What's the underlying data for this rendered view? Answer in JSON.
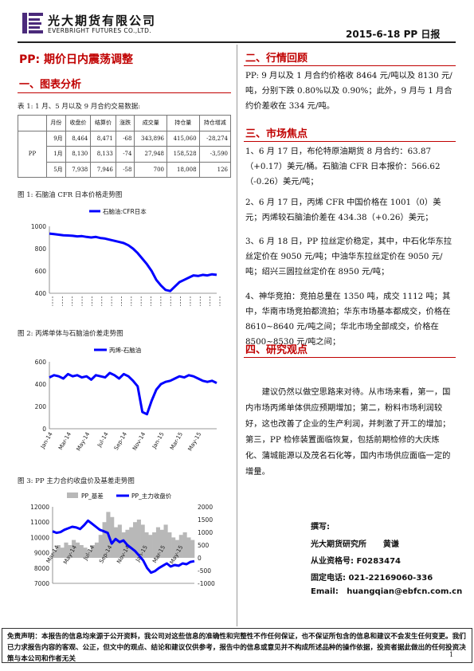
{
  "header": {
    "company_cn": "光大期货有限公司",
    "company_en": "EVERBRIGHT FUTURES CO.,LTD.",
    "report_date_label": "2015-6-18   PP 日报"
  },
  "title": "PP:  期价日内震荡调整",
  "left": {
    "section1_title": "一、图表分析",
    "table_caption": "表 1:  1 月、5 月以及 9 月合约交易数据:",
    "table": {
      "headers": [
        "月份",
        "收盘价",
        "结算价",
        "涨跌",
        "成交量",
        "持仓量",
        "持仓增减"
      ],
      "group_label": "PP",
      "rows": [
        [
          "9月",
          "8,464",
          "8,471",
          "-68",
          "343,896",
          "415,060",
          "-28,274"
        ],
        [
          "1月",
          "8,130",
          "8,133",
          "-74",
          "27,948",
          "158,528",
          "-3,590"
        ],
        [
          "5月",
          "7,938",
          "7,946",
          "-58",
          "700",
          "18,008",
          "126"
        ]
      ]
    },
    "fig1_caption": "图 1:  石脑油 CFR 日本价格走势图",
    "fig2_caption": "图 2:  丙烯单体与石脑油价差走势图",
    "fig3_caption": "图 3:  PP 主力合约收盘价及基差走势图"
  },
  "right": {
    "section2_title": "二、行情回顾",
    "section2_text": "PP: 9 月以及 1 月合约价格收 8464 元/吨以及 8130 元/吨，分别下跌 0.80%以及 0.90%；此外，9 月与 1 月合约价差收在 334 元/吨。",
    "section3_title": "三、市场焦点",
    "focus": [
      "1、6 月 17 日，布伦特原油期货 8 月合约：63.87（+0.17）美元/桶。石脑油 CFR 日本报价：566.62（-0.26）美元/吨；",
      "2、6 月 17 日，丙烯 CFR 中国价格在 1001（0）美元；丙烯较石脑油价差在 434.38（+0.26）美元；",
      "3、6 月 18 日，PP 拉丝定价稳定，其中，中石化华东拉丝定价在 9050 元/吨；中油华东拉丝定价在 9050 元/吨；绍兴三圆拉丝定价在 8950 元/吨；",
      "4、神华竞拍：竞拍总量在 1350 吨，成交 1112 吨；其中，华南市场竞拍都流拍；华东市场基本都成交，价格在 8610~8640 元/吨之间；华北市场全部成交，价格在 8500~8530 元/吨之间；"
    ],
    "section4_title": "四、研究观点",
    "view_text": "建议仍然以做空思路来对待。从市场来看，第一，国内市场丙烯单体供应预期增加；第二，粉料市场利润较好，这也改善了企业的生产利润，并刺激了开工的增加；第三，PP 检修装置面临恢复，包括前期检修的大庆炼化、蒲城能源以及茂名石化等，国内市场供应面临一定的增量。",
    "author": {
      "heading": "撰写:",
      "line1": "光大期货研究所      黄谦",
      "line2": "从业资格号:  F0283474",
      "line3": "固定电话:  021-22169060-336",
      "line4": "Email:   huangqian@ebfcn.com.cn"
    }
  },
  "footer": {
    "disclaimer": "免责声明：本报告的信息均来源于公开资料，我公司对这些信息的准确性和完整性不作任何保证，也不保证所包含的信息和建议不会发生任何变更。我们已力求报告内容的客观、公正，但文中的观点、结论和建议仅供参考，报告中的信息或意见并不构成所述品种的操作依据，投资者据此做出的任何投资决策与本公司和作者无关",
    "page": "1"
  },
  "chart_data": [
    {
      "type": "line",
      "legend": [
        "石脑油:CFR日本"
      ],
      "ylim": [
        400,
        1000
      ],
      "yticks": [
        "1000",
        "800",
        "600",
        "400"
      ],
      "color": "#0000ff",
      "series": [
        {
          "name": "石脑油:CFR日本",
          "values": [
            935,
            930,
            925,
            920,
            918,
            915,
            910,
            912,
            905,
            900,
            905,
            895,
            890,
            880,
            870,
            860,
            850,
            830,
            800,
            760,
            710,
            660,
            600,
            520,
            470,
            430,
            420,
            460,
            500,
            520,
            540,
            560,
            555,
            565,
            560,
            570,
            565
          ]
        }
      ]
    },
    {
      "type": "line",
      "legend": [
        "丙烯-石脑油"
      ],
      "ylim": [
        0,
        600
      ],
      "yticks": [
        "600",
        "400",
        "200",
        "0"
      ],
      "xticks": [
        "Jan-14",
        "Mar-14",
        "May-14",
        "Jul-14",
        "Sep-14",
        "Nov-14",
        "Jan-15",
        "Mar-15",
        "May-15"
      ],
      "color": "#0000ff",
      "series": [
        {
          "name": "丙烯-石脑油",
          "values": [
            460,
            480,
            470,
            450,
            490,
            470,
            480,
            460,
            470,
            440,
            480,
            470,
            460,
            500,
            480,
            450,
            490,
            470,
            430,
            380,
            150,
            130,
            250,
            350,
            400,
            420,
            430,
            450,
            470,
            460,
            480,
            470,
            450,
            430,
            420,
            430,
            410
          ]
        }
      ]
    },
    {
      "type": "line",
      "legend": [
        "PP_基差",
        "PP_主力收盘价"
      ],
      "ylim": [
        7000,
        12000
      ],
      "y2lim": [
        -1000,
        2000
      ],
      "yticks": [
        "12000",
        "11000",
        "10000",
        "9000",
        "8000",
        "7000"
      ],
      "y2ticks": [
        "2000",
        "1500",
        "1000",
        "500",
        "0",
        "-500",
        "-1000"
      ],
      "xticks": [
        "Mar-14",
        "May-14",
        "Jul-14",
        "Sep-14",
        "Nov-14",
        "Jan-15",
        "Mar-15",
        "May-15"
      ],
      "series": [
        {
          "name": "PP_主力收盘价",
          "color": "#0000ff",
          "values": [
            10400,
            10300,
            10350,
            10500,
            10600,
            10700,
            10650,
            10550,
            10800,
            11100,
            10900,
            10700,
            10500,
            10400,
            10300,
            9600,
            9900,
            9700,
            9800,
            9500,
            9300,
            9100,
            8800,
            8500,
            8000,
            7700,
            7800,
            8000,
            8150,
            8300,
            8100,
            8200,
            8150,
            8300,
            8250,
            8400,
            8450
          ]
        },
        {
          "name": "PP_基差",
          "color": "#b8b8b8",
          "values": [
            300,
            500,
            400,
            600,
            500,
            700,
            600,
            500,
            400,
            300,
            500,
            600,
            900,
            1400,
            1800,
            1600,
            1200,
            1300,
            1000,
            1100,
            1200,
            1400,
            1500,
            1300,
            1000,
            900,
            1000,
            1200,
            1100,
            1300,
            1000,
            800,
            700,
            900,
            1000,
            800,
            700
          ]
        }
      ]
    }
  ]
}
